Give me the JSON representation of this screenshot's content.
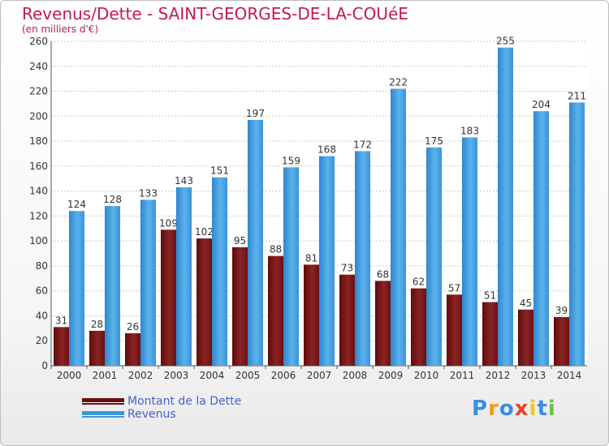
{
  "header": {
    "title": "Revenus/Dette - SAINT-GEORGES-DE-LA-COUéE",
    "subtitle": "(en milliers d'€)"
  },
  "chart_data": {
    "type": "bar",
    "title": "Revenus/Dette - SAINT-GEORGES-DE-LA-COUéE",
    "ylabel": "(en milliers d'€)",
    "xlabel": "",
    "ylim": [
      0,
      260
    ],
    "yticks": [
      0,
      20,
      40,
      60,
      80,
      100,
      120,
      140,
      160,
      180,
      200,
      220,
      240,
      260
    ],
    "grid": true,
    "legend_placement": "bottom-left",
    "categories": [
      "2000",
      "2001",
      "2002",
      "2003",
      "2004",
      "2005",
      "2006",
      "2007",
      "2008",
      "2009",
      "2010",
      "2011",
      "2012",
      "2013",
      "2014"
    ],
    "series": [
      {
        "name": "Montant de la Dette",
        "color": "#7b1a1a",
        "values": [
          31,
          28,
          26,
          109,
          102,
          95,
          88,
          81,
          73,
          68,
          62,
          57,
          51,
          45,
          39
        ]
      },
      {
        "name": "Revenus",
        "color": "#4aa3e0",
        "values": [
          124,
          128,
          133,
          143,
          151,
          197,
          159,
          168,
          172,
          222,
          175,
          183,
          255,
          204,
          211
        ]
      }
    ]
  },
  "legend": {
    "items": [
      {
        "label": "Montant de la Dette",
        "color": "#6a0f0f"
      },
      {
        "label": "Revenus",
        "color": "#3a97dc"
      }
    ]
  },
  "logo": {
    "letters": [
      "P",
      "r",
      "o",
      "x",
      "i",
      "t",
      "i"
    ],
    "colors": [
      "#3a8ee0",
      "#f39a1e",
      "#3a8ee0",
      "#e8432c",
      "#f3c41e",
      "#3a8ee0",
      "#6cc04a"
    ]
  }
}
